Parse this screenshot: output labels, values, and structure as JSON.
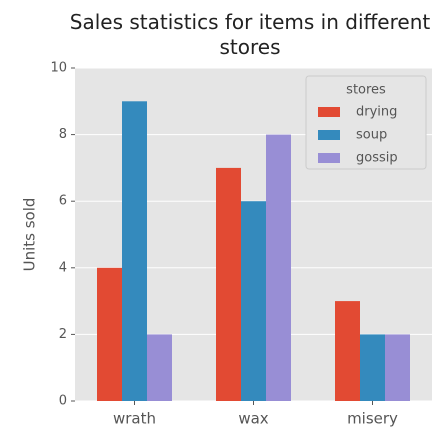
{
  "chart_data": {
    "type": "bar",
    "title": "Sales statistics for items in different stores",
    "categories": [
      "wrath",
      "wax",
      "misery"
    ],
    "series": [
      {
        "name": "drying",
        "color": "#e24a33",
        "values": [
          4,
          7,
          3
        ]
      },
      {
        "name": "soup",
        "color": "#348abd",
        "values": [
          9,
          6,
          2
        ]
      },
      {
        "name": "gossip",
        "color": "#988ed5",
        "values": [
          2,
          8,
          2
        ]
      }
    ],
    "ylabel": "Units sold",
    "legend_title": "stores",
    "legend": "upper right",
    "ylim": [
      0,
      10
    ],
    "yticks": [
      0,
      2,
      4,
      6,
      8,
      10
    ],
    "grid": true
  }
}
